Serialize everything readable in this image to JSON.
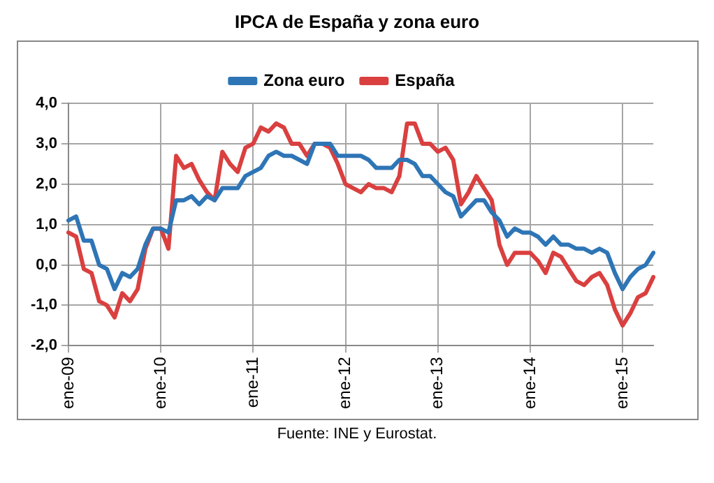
{
  "chart_data": {
    "type": "line",
    "title": "IPCA de España y zona euro",
    "categories": [
      "ene-09",
      null,
      null,
      null,
      null,
      null,
      null,
      null,
      null,
      null,
      null,
      null,
      "ene-10",
      null,
      null,
      null,
      null,
      null,
      null,
      null,
      null,
      null,
      null,
      null,
      "ene-11",
      null,
      null,
      null,
      null,
      null,
      null,
      null,
      null,
      null,
      null,
      null,
      "ene-12",
      null,
      null,
      null,
      null,
      null,
      null,
      null,
      null,
      null,
      null,
      null,
      "ene-13",
      null,
      null,
      null,
      null,
      null,
      null,
      null,
      null,
      null,
      null,
      null,
      "ene-14",
      null,
      null,
      null,
      null,
      null,
      null,
      null,
      null,
      null,
      null,
      null,
      "ene-15",
      null,
      null,
      null,
      null
    ],
    "series": [
      {
        "name": "Zona euro",
        "color": "#2e75b6",
        "values": [
          1.1,
          1.2,
          0.6,
          0.6,
          0.0,
          -0.1,
          -0.6,
          -0.2,
          -0.3,
          -0.1,
          0.5,
          0.9,
          0.9,
          0.8,
          1.6,
          1.6,
          1.7,
          1.5,
          1.7,
          1.6,
          1.9,
          1.9,
          1.9,
          2.2,
          2.3,
          2.4,
          2.7,
          2.8,
          2.7,
          2.7,
          2.6,
          2.5,
          3.0,
          3.0,
          3.0,
          2.7,
          2.7,
          2.7,
          2.7,
          2.6,
          2.4,
          2.4,
          2.4,
          2.6,
          2.6,
          2.5,
          2.2,
          2.2,
          2.0,
          1.8,
          1.7,
          1.2,
          1.4,
          1.6,
          1.6,
          1.3,
          1.1,
          0.7,
          0.9,
          0.8,
          0.8,
          0.7,
          0.5,
          0.7,
          0.5,
          0.5,
          0.4,
          0.4,
          0.3,
          0.4,
          0.3,
          -0.2,
          -0.6,
          -0.3,
          -0.1,
          0.0,
          0.3
        ]
      },
      {
        "name": "España",
        "color": "#d9403f",
        "values": [
          0.8,
          0.7,
          -0.1,
          -0.2,
          -0.9,
          -1.0,
          -1.3,
          -0.7,
          -0.9,
          -0.6,
          0.4,
          0.9,
          0.9,
          0.4,
          2.7,
          2.4,
          2.5,
          2.1,
          1.8,
          1.6,
          2.8,
          2.5,
          2.3,
          2.9,
          3.0,
          3.4,
          3.3,
          3.5,
          3.4,
          3.0,
          3.0,
          2.7,
          3.0,
          3.0,
          2.9,
          2.5,
          2.0,
          1.9,
          1.8,
          2.0,
          1.9,
          1.9,
          1.8,
          2.2,
          3.5,
          3.5,
          3.0,
          3.0,
          2.8,
          2.9,
          2.6,
          1.5,
          1.8,
          2.2,
          1.9,
          1.6,
          0.5,
          0.0,
          0.3,
          0.3,
          0.3,
          0.1,
          -0.2,
          0.3,
          0.2,
          -0.1,
          -0.4,
          -0.5,
          -0.3,
          -0.2,
          -0.5,
          -1.1,
          -1.5,
          -1.2,
          -0.8,
          -0.7,
          -0.3
        ]
      }
    ],
    "ylim": [
      -2,
      4
    ],
    "yticks": [
      {
        "value": -2,
        "label": "-2,0"
      },
      {
        "value": -1,
        "label": "-1,0"
      },
      {
        "value": 0,
        "label": "0,0"
      },
      {
        "value": 1,
        "label": "1,0"
      },
      {
        "value": 2,
        "label": "2,0"
      },
      {
        "value": 3,
        "label": "3,0"
      },
      {
        "value": 4,
        "label": "4,0"
      }
    ],
    "grid": true,
    "legend": "top",
    "marker": "none",
    "line_style": "solid",
    "annotations": [
      "Fuente: INE y Eurostat."
    ]
  }
}
